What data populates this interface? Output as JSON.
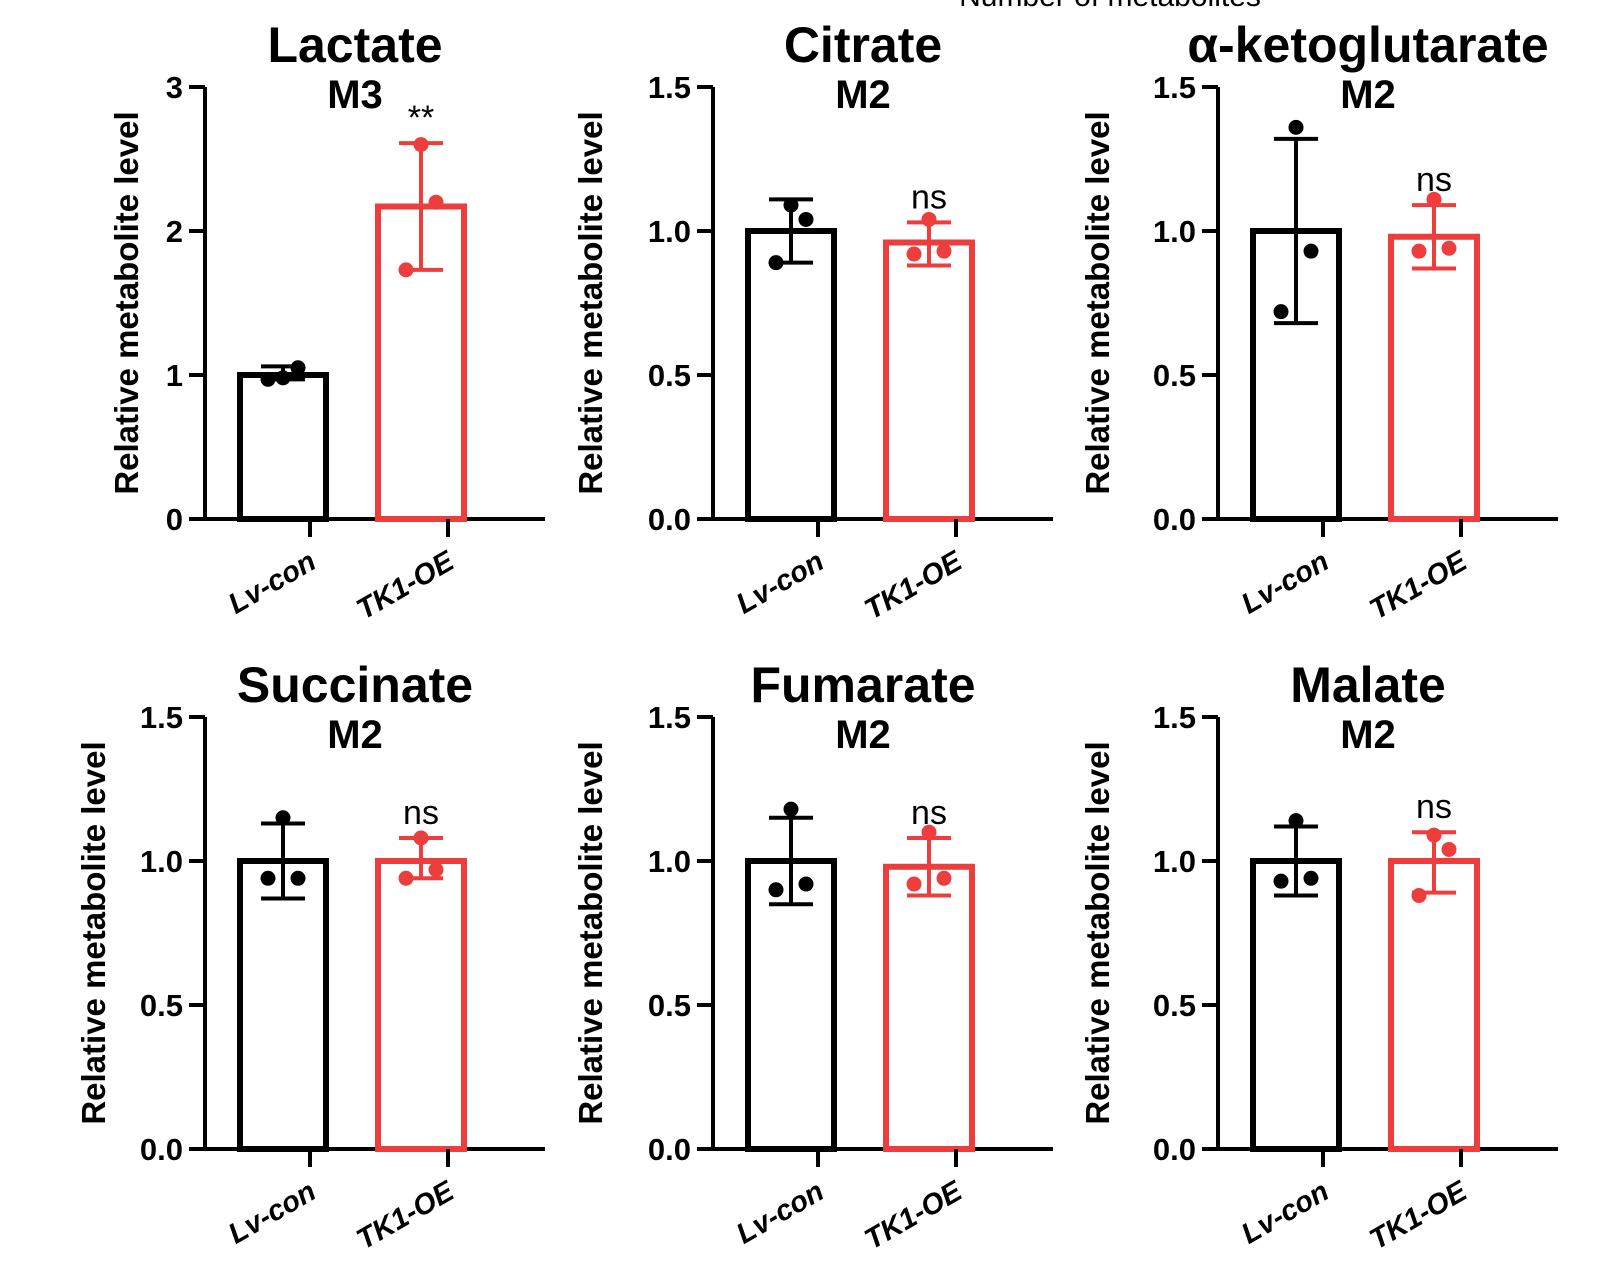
{
  "header_fragment": "Number of metabolites",
  "colors": {
    "control": "#000000",
    "treatment": "#ee3d3d"
  },
  "chart_data": [
    {
      "type": "bar",
      "title": "Lactate",
      "subtitle": "M3",
      "ylabel": "Relative metabolite level",
      "categories": [
        "Lv-con",
        "TK1-OE"
      ],
      "ylim": [
        0,
        3
      ],
      "yticks": [
        "0",
        "1",
        "2",
        "3"
      ],
      "series": [
        {
          "name": "Lv-con",
          "value": 1.0,
          "err_low": 0.97,
          "err_high": 1.06,
          "points": [
            0.97,
            1.05,
            0.98
          ]
        },
        {
          "name": "TK1-OE",
          "value": 2.17,
          "err_low": 1.73,
          "err_high": 2.61,
          "points": [
            1.73,
            2.2,
            2.6
          ]
        }
      ],
      "significance": "**"
    },
    {
      "type": "bar",
      "title": "Citrate",
      "subtitle": "M2",
      "ylabel": "Relative metabolite level",
      "categories": [
        "Lv-con",
        "TK1-OE"
      ],
      "ylim": [
        0,
        1.5
      ],
      "yticks": [
        "0.0",
        "0.5",
        "1.0",
        "1.5"
      ],
      "series": [
        {
          "name": "Lv-con",
          "value": 1.0,
          "err_low": 0.89,
          "err_high": 1.11,
          "points": [
            0.89,
            1.04,
            1.09
          ]
        },
        {
          "name": "TK1-OE",
          "value": 0.96,
          "err_low": 0.88,
          "err_high": 1.03,
          "points": [
            0.92,
            0.93,
            1.04
          ]
        }
      ],
      "significance": "ns"
    },
    {
      "type": "bar",
      "title": "α-ketoglutarate",
      "subtitle": "M2",
      "ylabel": "Relative metabolite level",
      "categories": [
        "Lv-con",
        "TK1-OE"
      ],
      "ylim": [
        0,
        1.5
      ],
      "yticks": [
        "0.0",
        "0.5",
        "1.0",
        "1.5"
      ],
      "series": [
        {
          "name": "Lv-con",
          "value": 1.0,
          "err_low": 0.68,
          "err_high": 1.32,
          "points": [
            0.72,
            0.93,
            1.36
          ]
        },
        {
          "name": "TK1-OE",
          "value": 0.98,
          "err_low": 0.87,
          "err_high": 1.09,
          "points": [
            0.93,
            0.94,
            1.11
          ]
        }
      ],
      "significance": "ns"
    },
    {
      "type": "bar",
      "title": "Succinate",
      "subtitle": "M2",
      "ylabel": "Relative metabolite level",
      "categories": [
        "Lv-con",
        "TK1-OE"
      ],
      "ylim": [
        0,
        1.5
      ],
      "yticks": [
        "0.0",
        "0.5",
        "1.0",
        "1.5"
      ],
      "series": [
        {
          "name": "Lv-con",
          "value": 1.0,
          "err_low": 0.87,
          "err_high": 1.13,
          "points": [
            0.94,
            0.94,
            1.15
          ]
        },
        {
          "name": "TK1-OE",
          "value": 1.0,
          "err_low": 0.94,
          "err_high": 1.08,
          "points": [
            0.94,
            0.97,
            1.08
          ]
        }
      ],
      "significance": "ns"
    },
    {
      "type": "bar",
      "title": "Fumarate",
      "subtitle": "M2",
      "ylabel": "Relative metabolite level",
      "categories": [
        "Lv-con",
        "TK1-OE"
      ],
      "ylim": [
        0,
        1.5
      ],
      "yticks": [
        "0.0",
        "0.5",
        "1.0",
        "1.5"
      ],
      "series": [
        {
          "name": "Lv-con",
          "value": 1.0,
          "err_low": 0.85,
          "err_high": 1.15,
          "points": [
            0.9,
            0.92,
            1.18
          ]
        },
        {
          "name": "TK1-OE",
          "value": 0.98,
          "err_low": 0.88,
          "err_high": 1.08,
          "points": [
            0.92,
            0.94,
            1.1
          ]
        }
      ],
      "significance": "ns"
    },
    {
      "type": "bar",
      "title": "Malate",
      "subtitle": "M2",
      "ylabel": "Relative metabolite level",
      "categories": [
        "Lv-con",
        "TK1-OE"
      ],
      "ylim": [
        0,
        1.5
      ],
      "yticks": [
        "0.0",
        "0.5",
        "1.0",
        "1.5"
      ],
      "series": [
        {
          "name": "Lv-con",
          "value": 1.0,
          "err_low": 0.88,
          "err_high": 1.12,
          "points": [
            0.93,
            0.94,
            1.14
          ]
        },
        {
          "name": "TK1-OE",
          "value": 1.0,
          "err_low": 0.89,
          "err_high": 1.1,
          "points": [
            0.88,
            1.04,
            1.09
          ]
        }
      ],
      "significance": "ns"
    }
  ]
}
